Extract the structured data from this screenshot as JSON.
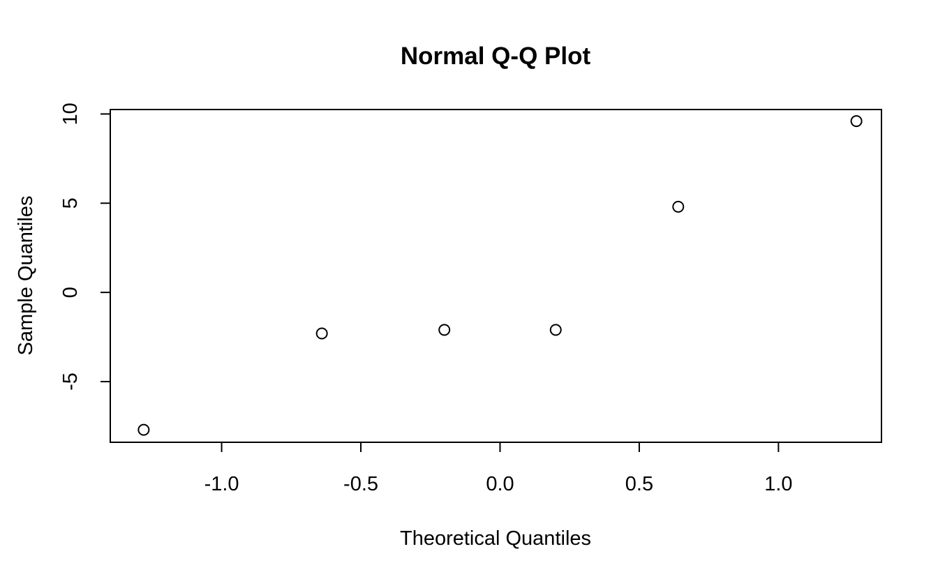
{
  "chart_data": {
    "type": "scatter",
    "title": "Normal Q-Q Plot",
    "xlabel": "Theoretical Quantiles",
    "ylabel": "Sample Quantiles",
    "xlim": [
      -1.4,
      1.37
    ],
    "ylim": [
      -8.4,
      10.25
    ],
    "xticks": [
      -1.0,
      -0.5,
      0.0,
      0.5,
      1.0
    ],
    "xtick_labels": [
      "-1.0",
      "-0.5",
      "0.0",
      "0.5",
      "1.0"
    ],
    "yticks": [
      -5,
      0,
      5,
      10
    ],
    "ytick_labels": [
      "-5",
      "0",
      "5",
      "10"
    ],
    "grid": false,
    "series": [
      {
        "x": [
          -1.28,
          -0.64,
          -0.2,
          0.2,
          0.64,
          1.28
        ],
        "y": [
          -7.7,
          -2.3,
          -2.1,
          -2.1,
          4.8,
          9.6
        ]
      }
    ]
  }
}
